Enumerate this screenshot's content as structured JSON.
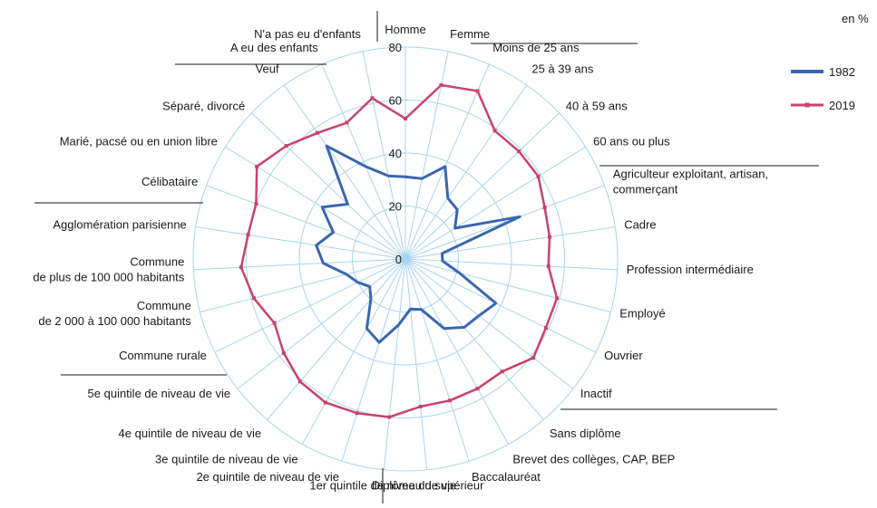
{
  "unit_label": "en %",
  "chart_data": {
    "type": "radar",
    "ylim": [
      0,
      80
    ],
    "ticks": [
      "0",
      "20",
      "40",
      "60",
      "80"
    ],
    "categories": [
      "Homme",
      "Femme",
      "Moins de 25 ans",
      "25 à 39 ans",
      "40 à 59 ans",
      "60 ans ou plus",
      "Agriculteur exploitant, artisan, commerçant",
      "Cadre",
      "Profession intermédiaire",
      "Employé",
      "Ouvrier",
      "Inactif",
      "Sans diplôme",
      "Brevet des collèges, CAP, BEP",
      "Baccalauréat",
      "Diplôme du supérieur",
      "1er quintile de niveau de vie",
      "2e quintile de niveau de vie",
      "3e quintile de niveau de vie",
      "4e quintile de niveau de vie",
      "5e quintile de niveau de vie",
      "Commune rurale",
      "Commune de 2 000 à 100 000 habitants",
      "Commune de plus de 100 000 habitants",
      "Agglomération parisienne",
      "Célibataire",
      "Marié, pacsé ou en union libre",
      "Séparé, divorcé",
      "Veuf",
      "A eu des enfants",
      "N'a pas eu d'enfants"
    ],
    "category_labels": [
      [
        "Homme"
      ],
      [
        "Femme"
      ],
      [
        "Moins de 25 ans"
      ],
      [
        "25 à 39 ans"
      ],
      [
        "40 à 59 ans"
      ],
      [
        "60 ans ou plus"
      ],
      [
        "Agriculteur exploitant, artisan,",
        "commerçant"
      ],
      [
        "Cadre"
      ],
      [
        "Profession intermédiaire"
      ],
      [
        "Employé"
      ],
      [
        "Ouvrier"
      ],
      [
        "Inactif"
      ],
      [
        "Sans diplôme"
      ],
      [
        "Brevet des collèges, CAP, BEP"
      ],
      [
        "Baccalauréat"
      ],
      [
        "Diplôme du supérieur"
      ],
      [
        "1er quintile de niveau de vie"
      ],
      [
        "2e quintile de niveau de vie"
      ],
      [
        "3e quintile de niveau de vie"
      ],
      [
        "4e quintile de niveau de vie"
      ],
      [
        "5e quintile de niveau de vie"
      ],
      [
        "Commune rurale"
      ],
      [
        "Commune",
        "de 2 000 à 100 000 habitants"
      ],
      [
        "Commune",
        "de plus de 100 000 habitants"
      ],
      [
        "Agglomération parisienne"
      ],
      [
        "Célibataire"
      ],
      [
        "Marié, pacsé ou en union libre"
      ],
      [
        "Séparé, divorcé"
      ],
      [
        "Veuf"
      ],
      [
        "A eu des enfants"
      ],
      [
        "N'a pas eu d'enfants"
      ]
    ],
    "series": [
      {
        "name": "1982",
        "color": "#3a66b0",
        "values": [
          31,
          31,
          38,
          28,
          27,
          22,
          46,
          14,
          14,
          21,
          38,
          35,
          34,
          30,
          20,
          19,
          25,
          33,
          30,
          20,
          17,
          20,
          23,
          31,
          34,
          29,
          37,
          30,
          52,
          38,
          32
        ]
      },
      {
        "name": "2019",
        "color": "#c9436c",
        "values": [
          53,
          67,
          69,
          59,
          59,
          59,
          56,
          55,
          54,
          59,
          59,
          61,
          56,
          56,
          56,
          56,
          60,
          61,
          62,
          61,
          58,
          55,
          59,
          62,
          60,
          60,
          66,
          62,
          58,
          56,
          62
        ]
      }
    ]
  }
}
